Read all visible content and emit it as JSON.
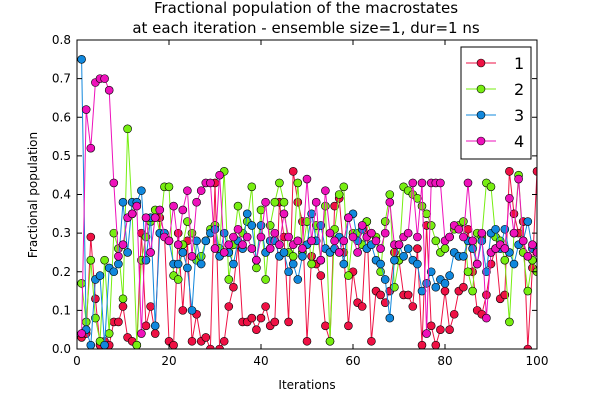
{
  "chart_data": {
    "type": "line",
    "title": "Fractional population of the macrostates",
    "subtitle": "at each iteration - ensemble size=1, dur=1 ns",
    "xlabel": "Iterations",
    "ylabel": "Fractional population",
    "xlim": [
      0,
      100
    ],
    "ylim": [
      0,
      0.8
    ],
    "xticks": [
      "0",
      "20",
      "40",
      "60",
      "80",
      "100"
    ],
    "yticks": [
      "0.0",
      "0.1",
      "0.2",
      "0.3",
      "0.4",
      "0.5",
      "0.6",
      "0.7",
      "0.8"
    ],
    "grid": false,
    "legend_position": "top-right",
    "x": [
      1,
      2,
      3,
      4,
      5,
      6,
      7,
      8,
      9,
      10,
      11,
      12,
      13,
      14,
      15,
      16,
      17,
      18,
      19,
      20,
      21,
      22,
      23,
      24,
      25,
      26,
      27,
      28,
      29,
      30,
      31,
      32,
      33,
      34,
      35,
      36,
      37,
      38,
      39,
      40,
      41,
      42,
      43,
      44,
      45,
      46,
      47,
      48,
      49,
      50,
      51,
      52,
      53,
      54,
      55,
      56,
      57,
      58,
      59,
      60,
      61,
      62,
      63,
      64,
      65,
      66,
      67,
      68,
      69,
      70,
      71,
      72,
      73,
      74,
      75,
      76,
      77,
      78,
      79,
      80,
      81,
      82,
      83,
      84,
      85,
      86,
      87,
      88,
      89,
      90,
      91,
      92,
      93,
      94,
      95,
      96,
      97,
      98,
      99,
      100
    ],
    "series": [
      {
        "name": "1",
        "color": "#ee1144",
        "values": [
          0.03,
          0.04,
          0.29,
          0.13,
          0.01,
          0.02,
          0.01,
          0.07,
          0.07,
          0.11,
          0.03,
          0.02,
          0.01,
          0.3,
          0.06,
          0.11,
          0.04,
          0.34,
          0.3,
          0.02,
          0.01,
          0.3,
          0.1,
          0.28,
          0.02,
          0.09,
          0.02,
          0.03,
          0.0,
          0.43,
          0.0,
          0.02,
          0.11,
          0.16,
          0.27,
          0.07,
          0.07,
          0.08,
          0.05,
          0.08,
          0.11,
          0.06,
          0.07,
          0.38,
          0.29,
          0.07,
          0.46,
          0.38,
          0.33,
          0.02,
          0.24,
          0.22,
          0.19,
          0.06,
          0.02,
          0.37,
          0.39,
          0.25,
          0.06,
          0.2,
          0.12,
          0.11,
          0.33,
          0.02,
          0.15,
          0.14,
          0.12,
          0.15,
          0.25,
          0.23,
          0.14,
          0.14,
          0.11,
          0.26,
          0.01,
          0.32,
          0.06,
          0.01,
          0.05,
          0.15,
          0.05,
          0.09,
          0.15,
          0.16,
          0.31,
          0.2,
          0.1,
          0.09,
          0.14,
          0.22,
          0.26,
          0.13,
          0.14,
          0.46,
          0.35,
          0.3,
          0.33,
          0.0,
          0.21,
          0.46
        ]
      },
      {
        "name": "2",
        "color": "#77ee11",
        "values": [
          0.17,
          0.07,
          0.23,
          0.08,
          0.02,
          0.23,
          0.04,
          0.3,
          0.26,
          0.13,
          0.57,
          0.35,
          0.01,
          0.23,
          0.29,
          0.33,
          0.36,
          0.3,
          0.42,
          0.42,
          0.19,
          0.18,
          0.27,
          0.33,
          0.3,
          0.23,
          0.24,
          0.28,
          0.31,
          0.32,
          0.26,
          0.46,
          0.18,
          0.27,
          0.37,
          0.3,
          0.33,
          0.42,
          0.21,
          0.36,
          0.18,
          0.32,
          0.38,
          0.43,
          0.38,
          0.25,
          0.24,
          0.43,
          0.25,
          0.33,
          0.22,
          0.32,
          0.23,
          0.37,
          0.02,
          0.31,
          0.4,
          0.42,
          0.19,
          0.3,
          0.3,
          0.27,
          0.33,
          0.3,
          0.29,
          0.2,
          0.33,
          0.4,
          0.16,
          0.23,
          0.42,
          0.41,
          0.4,
          0.39,
          0.37,
          0.35,
          0.32,
          0.28,
          0.25,
          0.26,
          0.29,
          0.31,
          0.32,
          0.33,
          0.2,
          0.15,
          0.3,
          0.29,
          0.43,
          0.42,
          0.29,
          0.28,
          0.23,
          0.07,
          0.3,
          0.45,
          0.25,
          0.15,
          0.23,
          0.2
        ]
      },
      {
        "name": "3",
        "color": "#1188dd",
        "values": [
          0.75,
          0.05,
          0.01,
          0.18,
          0.19,
          0.01,
          0.21,
          0.2,
          0.22,
          0.38,
          0.25,
          0.38,
          0.38,
          0.41,
          0.23,
          0.34,
          0.06,
          0.3,
          0.3,
          0.28,
          0.22,
          0.22,
          0.25,
          0.21,
          0.1,
          0.28,
          0.22,
          0.28,
          0.3,
          0.31,
          0.24,
          0.3,
          0.25,
          0.22,
          0.28,
          0.26,
          0.35,
          0.32,
          0.23,
          0.32,
          0.25,
          0.28,
          0.28,
          0.24,
          0.25,
          0.2,
          0.22,
          0.18,
          0.24,
          0.27,
          0.35,
          0.28,
          0.32,
          0.26,
          0.25,
          0.26,
          0.29,
          0.22,
          0.34,
          0.35,
          0.28,
          0.31,
          0.26,
          0.27,
          0.23,
          0.22,
          0.18,
          0.08,
          0.23,
          0.27,
          0.24,
          0.26,
          0.23,
          0.22,
          0.15,
          0.17,
          0.2,
          0.16,
          0.18,
          0.17,
          0.19,
          0.25,
          0.24,
          0.24,
          0.28,
          0.26,
          0.22,
          0.28,
          0.2,
          0.3,
          0.31,
          0.26,
          0.31,
          0.25,
          0.22,
          0.27,
          0.28,
          0.33,
          0.26,
          0.26
        ]
      },
      {
        "name": "4",
        "color": "#ee11bb",
        "values": [
          0.04,
          0.62,
          0.52,
          0.69,
          0.7,
          0.7,
          0.67,
          0.43,
          0.24,
          0.27,
          0.34,
          0.35,
          0.37,
          0.04,
          0.34,
          0.25,
          0.34,
          0.36,
          0.29,
          0.28,
          0.37,
          0.27,
          0.36,
          0.41,
          0.24,
          0.38,
          0.41,
          0.43,
          0.43,
          0.26,
          0.45,
          0.25,
          0.27,
          0.29,
          0.31,
          0.27,
          0.29,
          0.26,
          0.23,
          0.29,
          0.38,
          0.26,
          0.3,
          0.27,
          0.35,
          0.29,
          0.27,
          0.28,
          0.26,
          0.44,
          0.28,
          0.38,
          0.23,
          0.41,
          0.3,
          0.28,
          0.25,
          0.28,
          0.34,
          0.29,
          0.25,
          0.32,
          0.29,
          0.3,
          0.28,
          0.26,
          0.3,
          0.38,
          0.27,
          0.27,
          0.29,
          0.3,
          0.43,
          0.29,
          0.43,
          0.04,
          0.43,
          0.43,
          0.43,
          0.28,
          0.29,
          0.32,
          0.31,
          0.29,
          0.43,
          0.28,
          0.22,
          0.3,
          0.08,
          0.25,
          0.26,
          0.27,
          0.26,
          0.39,
          0.3,
          0.44,
          0.28,
          0.24,
          0.27,
          0.25
        ]
      }
    ]
  }
}
